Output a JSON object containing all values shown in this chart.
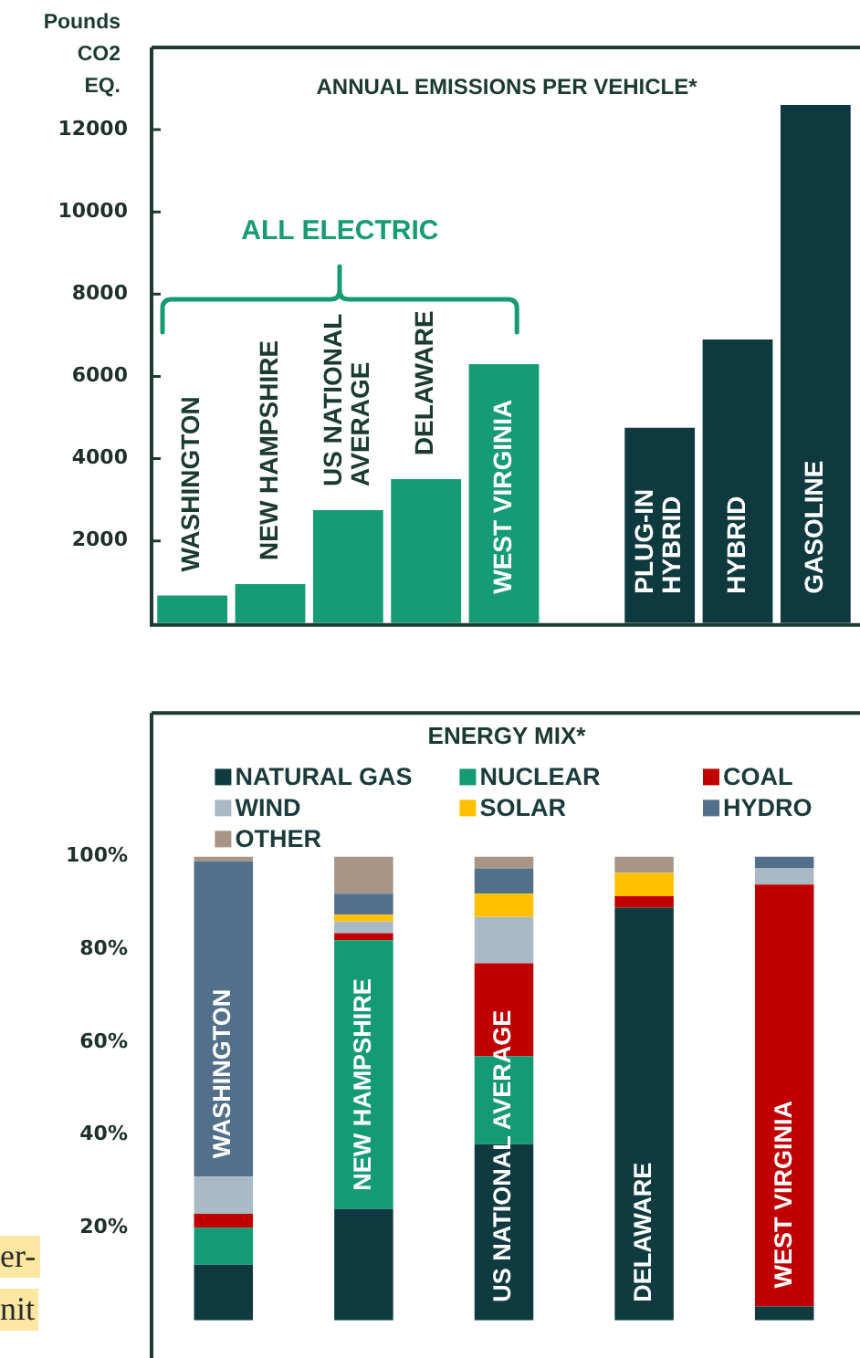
{
  "chart_data": [
    {
      "type": "bar",
      "title": "ANNUAL EMISSIONS PER VEHICLE*",
      "ylabel": "Pounds\nCO2\nEQ.",
      "categories": [
        "WASHINGTON",
        "NEW HAMPSHIRE",
        "US NATIONAL\nAVERAGE",
        "DELAWARE",
        "WEST VIRGINIA",
        null,
        "PLUG-IN\nHYBRID",
        "HYBRID",
        "GASOLINE"
      ],
      "values": [
        670,
        950,
        2750,
        3500,
        6300,
        null,
        4750,
        6900,
        12600
      ],
      "colors": [
        "#159b75",
        "#159b75",
        "#159b75",
        "#159b75",
        "#159b75",
        null,
        "#0e393e",
        "#0e393e",
        "#0e393e"
      ],
      "ylim": [
        0,
        14000
      ],
      "yticks": [
        2000,
        4000,
        6000,
        8000,
        10000,
        12000
      ],
      "annotations": [
        "ALL ELECTRIC"
      ]
    },
    {
      "type": "bar",
      "stacked": true,
      "title": "ENERGY MIX*",
      "categories": [
        "WASHINGTON",
        "NEW HAMPSHIRE",
        "US NATIONAL AVERAGE",
        "DELAWARE",
        "WEST VIRGINIA"
      ],
      "series": [
        {
          "name": "NATURAL GAS",
          "color": "#0f3b40",
          "values": [
            12,
            24,
            38,
            89,
            3
          ]
        },
        {
          "name": "NUCLEAR",
          "color": "#149a74",
          "values": [
            8,
            58,
            19,
            0,
            0
          ]
        },
        {
          "name": "COAL",
          "color": "#c00000",
          "values": [
            3,
            1.5,
            20,
            2.5,
            91
          ]
        },
        {
          "name": "WIND",
          "color": "#aab9c6",
          "values": [
            8,
            2.5,
            10,
            0,
            3.5
          ]
        },
        {
          "name": "SOLAR",
          "color": "#ffc000",
          "values": [
            0,
            1.5,
            5,
            5,
            0
          ]
        },
        {
          "name": "HYDRO",
          "color": "#52708a",
          "values": [
            68,
            4.5,
            5.5,
            0,
            2.5
          ]
        },
        {
          "name": "OTHER",
          "color": "#a89585",
          "values": [
            1,
            8,
            2.5,
            3.5,
            0
          ]
        }
      ],
      "ylim": [
        0,
        131
      ],
      "yticks": [
        {
          "value": 20,
          "label": "20%"
        },
        {
          "value": 40,
          "label": "40%"
        },
        {
          "value": 60,
          "label": "60%"
        },
        {
          "value": 80,
          "label": "80%"
        },
        {
          "value": 100,
          "label": "100%"
        }
      ],
      "legend": "top",
      "annotations": [
        "er-",
        "nit"
      ]
    }
  ]
}
